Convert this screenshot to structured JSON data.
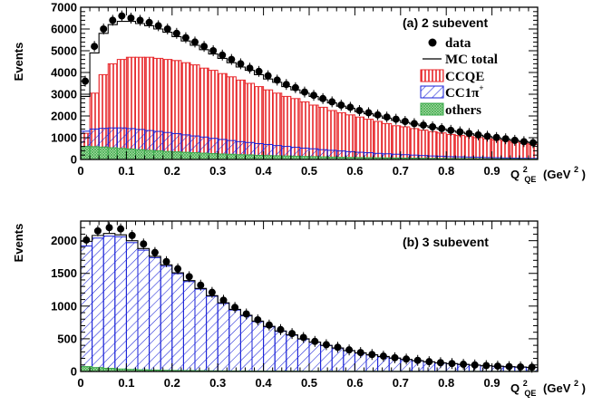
{
  "chart_data": [
    {
      "type": "bar",
      "title": "(a) 2 subevent",
      "ylabel": "Events",
      "xlabel": "Q",
      "xlabel_sup": "2",
      "xlabel_sub": "QE",
      "xlabel_unit": "(GeV",
      "xlabel_unit_sup": "2",
      "xlabel_unit_close": ")",
      "xlim": [
        0,
        1.0
      ],
      "ylim": [
        0,
        7000
      ],
      "x_ticks": [
        "0",
        "0.1",
        "0.2",
        "0.3",
        "0.4",
        "0.5",
        "0.6",
        "0.7",
        "0.8",
        "0.9"
      ],
      "y_ticks": [
        "0",
        "1000",
        "2000",
        "3000",
        "4000",
        "5000",
        "6000",
        "7000"
      ],
      "bin_width": 0.02,
      "legend": {
        "placement": "top-right",
        "entries": [
          {
            "label": "data",
            "style": "marker"
          },
          {
            "label": "MC total",
            "style": "line"
          },
          {
            "label": "CCQE",
            "style": "red-vertical-hatch"
          },
          {
            "label": "CC1π",
            "sup": "+",
            "style": "blue-diagonal-hatch"
          },
          {
            "label": "others",
            "style": "green-crosshatch"
          }
        ]
      },
      "series": [
        {
          "name": "data",
          "values": [
            3600,
            5200,
            6000,
            6400,
            6600,
            6500,
            6400,
            6300,
            6150,
            6000,
            5800,
            5600,
            5400,
            5200,
            5000,
            4800,
            4600,
            4400,
            4200,
            4050,
            3850,
            3650,
            3450,
            3300,
            3100,
            2950,
            2800,
            2650,
            2500,
            2400,
            2250,
            2150,
            2050,
            1950,
            1850,
            1750,
            1650,
            1580,
            1500,
            1420,
            1340,
            1270,
            1200,
            1130,
            1070,
            1010,
            950,
            880,
            820,
            770
          ]
        },
        {
          "name": "MC total",
          "values": [
            2900,
            4900,
            5800,
            6200,
            6350,
            6350,
            6250,
            6150,
            6000,
            5850,
            5650,
            5450,
            5250,
            5050,
            4850,
            4650,
            4450,
            4250,
            4100,
            3900,
            3700,
            3550,
            3350,
            3200,
            3050,
            2900,
            2750,
            2600,
            2450,
            2350,
            2200,
            2100,
            2000,
            1900,
            1800,
            1700,
            1630,
            1550,
            1470,
            1400,
            1320,
            1250,
            1180,
            1110,
            1050,
            990,
            930,
            870,
            810,
            760
          ]
        },
        {
          "name": "CCQE",
          "values": [
            1200,
            3050,
            3900,
            4400,
            4600,
            4700,
            4700,
            4700,
            4650,
            4600,
            4550,
            4450,
            4350,
            4200,
            4100,
            3950,
            3800,
            3650,
            3500,
            3350,
            3200,
            3050,
            2900,
            2800,
            2650,
            2500,
            2400,
            2250,
            2150,
            2050,
            1950,
            1850,
            1750,
            1650,
            1550,
            1500,
            1420,
            1350,
            1280,
            1220,
            1150,
            1100,
            1050,
            1000,
            950,
            900,
            850,
            790,
            740,
            690
          ]
        },
        {
          "name": "CC1π+",
          "values": [
            1300,
            1400,
            1430,
            1450,
            1450,
            1420,
            1380,
            1330,
            1290,
            1240,
            1190,
            1130,
            1080,
            1030,
            970,
            920,
            870,
            820,
            780,
            730,
            690,
            640,
            600,
            560,
            520,
            490,
            450,
            420,
            390,
            360,
            330,
            310,
            280,
            260,
            240,
            220,
            200,
            180,
            160,
            150,
            130,
            120,
            110,
            100,
            90,
            80,
            70,
            60,
            55,
            50
          ]
        },
        {
          "name": "others",
          "values": [
            600,
            590,
            570,
            540,
            510,
            480,
            450,
            420,
            400,
            370,
            350,
            330,
            310,
            290,
            270,
            250,
            240,
            220,
            210,
            190,
            180,
            170,
            160,
            150,
            140,
            130,
            120,
            110,
            100,
            95,
            90,
            85,
            80,
            75,
            70,
            65,
            60,
            55,
            50,
            45,
            42,
            40,
            38,
            35,
            32,
            30,
            28,
            26,
            24,
            22
          ]
        }
      ]
    },
    {
      "type": "bar",
      "title": "(b) 3 subevent",
      "ylabel": "Events",
      "xlabel": "Q",
      "xlabel_sup": "2",
      "xlabel_sub": "QE",
      "xlabel_unit": "(GeV",
      "xlabel_unit_sup": "2",
      "xlabel_unit_close": ")",
      "xlim": [
        0,
        1.0
      ],
      "ylim": [
        0,
        2300
      ],
      "x_ticks": [
        "0",
        "0.1",
        "0.2",
        "0.3",
        "0.4",
        "0.5",
        "0.6",
        "0.7",
        "0.8",
        "0.9"
      ],
      "y_ticks": [
        "0",
        "500",
        "1000",
        "1500",
        "2000"
      ],
      "bin_width": 0.025,
      "series": [
        {
          "name": "data",
          "values": [
            2010,
            2150,
            2200,
            2180,
            2080,
            1950,
            1820,
            1680,
            1570,
            1450,
            1320,
            1210,
            1090,
            980,
            880,
            790,
            710,
            640,
            580,
            520,
            460,
            410,
            370,
            330,
            290,
            260,
            235,
            210,
            190,
            170,
            150,
            135,
            122,
            110,
            100,
            90,
            82,
            75,
            70,
            65
          ]
        },
        {
          "name": "MC total",
          "values": [
            1990,
            2080,
            2110,
            2090,
            2000,
            1880,
            1760,
            1630,
            1510,
            1390,
            1270,
            1160,
            1050,
            950,
            860,
            770,
            690,
            620,
            560,
            500,
            450,
            400,
            360,
            320,
            285,
            255,
            230,
            205,
            185,
            165,
            148,
            132,
            120,
            108,
            98,
            88,
            80,
            73,
            68,
            63
          ]
        },
        {
          "name": "CC1π+",
          "values": [
            1920,
            2040,
            2070,
            2060,
            1970,
            1855,
            1740,
            1610,
            1495,
            1375,
            1260,
            1150,
            1040,
            940,
            850,
            762,
            683,
            614,
            554,
            495,
            446,
            396,
            357,
            317,
            282,
            252,
            227,
            202,
            182,
            162,
            145,
            130,
            118,
            106,
            96,
            86,
            78,
            71,
            66,
            61
          ]
        },
        {
          "name": "others",
          "values": [
            75,
            60,
            48,
            38,
            32,
            26,
            22,
            18,
            16,
            14,
            12,
            10,
            9,
            8,
            7,
            6,
            6,
            5,
            5,
            4,
            4,
            4,
            3,
            3,
            3,
            3,
            3,
            2,
            2,
            2,
            2,
            2,
            2,
            2,
            2,
            2,
            2,
            2,
            2,
            2
          ]
        }
      ]
    }
  ]
}
